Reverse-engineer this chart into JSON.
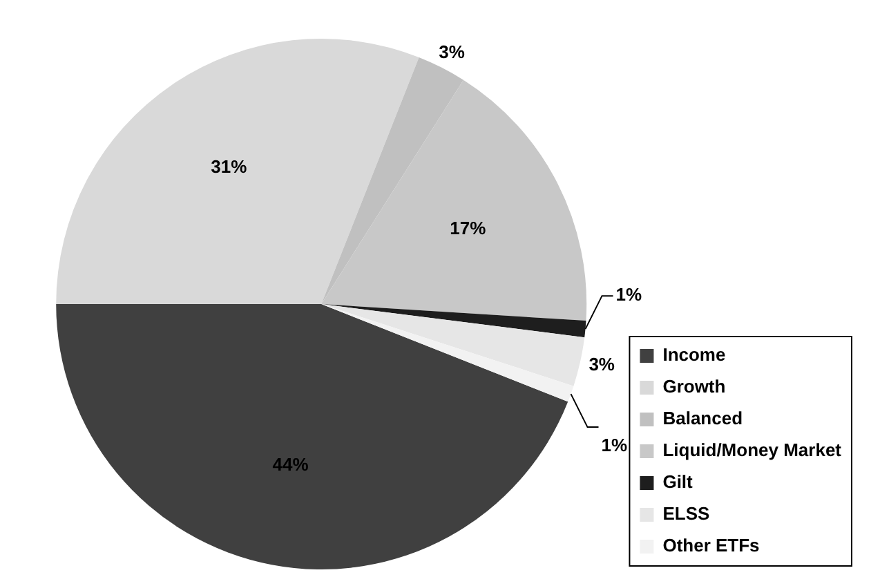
{
  "chart_data": {
    "type": "pie",
    "categories": [
      "Income",
      "Growth",
      "Balanced",
      "Liquid/Money Market",
      "Gilt",
      "ELSS",
      "Other ETFs"
    ],
    "values": [
      44,
      31,
      3,
      17,
      1,
      3,
      1
    ],
    "colors": [
      "#404040",
      "#d9d9d9",
      "#c0c0c0",
      "#c8c8c8",
      "#1e1e1e",
      "#e6e6e6",
      "#f2f2f2"
    ],
    "value_labels": [
      "44%",
      "31%",
      "3%",
      "17%",
      "1%",
      "3%",
      "1%"
    ],
    "legend": "bottom right"
  }
}
